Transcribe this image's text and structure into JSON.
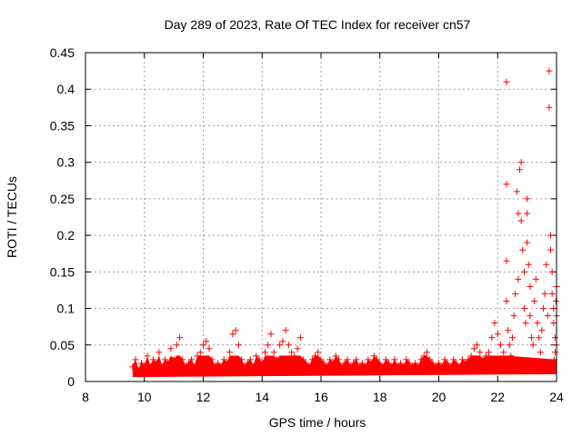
{
  "chart_data": {
    "type": "scatter",
    "title": "Day 289 of 2023, Rate Of TEC Index for receiver cn57",
    "xlabel": "GPS time / hours",
    "ylabel": "ROTI / TECUs",
    "xlim": [
      8,
      24
    ],
    "ylim": [
      0,
      0.45
    ],
    "xticks": [
      8,
      10,
      12,
      14,
      16,
      18,
      20,
      22,
      24
    ],
    "yticks": [
      0,
      0.05,
      0.1,
      0.15,
      0.2,
      0.25,
      0.3,
      0.35,
      0.4,
      0.45
    ],
    "ytick_labels": [
      "0",
      "0.05",
      "0.1",
      "0.15",
      "0.2",
      "0.25",
      "0.3",
      "0.35",
      "0.4",
      "0.45"
    ],
    "grid": true,
    "marker": "+",
    "color": "#ff0000",
    "series": [
      {
        "name": "ROTI",
        "points": [
          [
            9.6,
            0.02
          ],
          [
            9.7,
            0.03
          ],
          [
            9.8,
            0.015
          ],
          [
            9.9,
            0.025
          ],
          [
            10.0,
            0.02
          ],
          [
            10.1,
            0.035
          ],
          [
            10.2,
            0.02
          ],
          [
            10.3,
            0.03
          ],
          [
            10.4,
            0.025
          ],
          [
            10.5,
            0.04
          ],
          [
            10.6,
            0.02
          ],
          [
            10.7,
            0.03
          ],
          [
            10.8,
            0.025
          ],
          [
            10.9,
            0.045
          ],
          [
            11.0,
            0.03
          ],
          [
            11.1,
            0.05
          ],
          [
            11.2,
            0.06
          ],
          [
            11.3,
            0.03
          ],
          [
            11.4,
            0.02
          ],
          [
            11.5,
            0.025
          ],
          [
            11.6,
            0.03
          ],
          [
            11.7,
            0.02
          ],
          [
            11.8,
            0.035
          ],
          [
            11.9,
            0.04
          ],
          [
            12.0,
            0.05
          ],
          [
            12.1,
            0.055
          ],
          [
            12.2,
            0.045
          ],
          [
            12.3,
            0.03
          ],
          [
            12.4,
            0.02
          ],
          [
            12.5,
            0.025
          ],
          [
            12.6,
            0.02
          ],
          [
            12.7,
            0.03
          ],
          [
            12.8,
            0.025
          ],
          [
            12.9,
            0.04
          ],
          [
            13.0,
            0.065
          ],
          [
            13.1,
            0.07
          ],
          [
            13.2,
            0.05
          ],
          [
            13.3,
            0.03
          ],
          [
            13.4,
            0.02
          ],
          [
            13.5,
            0.025
          ],
          [
            13.6,
            0.03
          ],
          [
            13.7,
            0.02
          ],
          [
            13.8,
            0.035
          ],
          [
            13.9,
            0.03
          ],
          [
            14.0,
            0.025
          ],
          [
            14.1,
            0.04
          ],
          [
            14.2,
            0.05
          ],
          [
            14.3,
            0.065
          ],
          [
            14.4,
            0.04
          ],
          [
            14.5,
            0.03
          ],
          [
            14.6,
            0.05
          ],
          [
            14.7,
            0.055
          ],
          [
            14.8,
            0.07
          ],
          [
            14.9,
            0.05
          ],
          [
            15.0,
            0.04
          ],
          [
            15.1,
            0.035
          ],
          [
            15.2,
            0.045
          ],
          [
            15.3,
            0.06
          ],
          [
            15.4,
            0.03
          ],
          [
            15.5,
            0.025
          ],
          [
            15.6,
            0.02
          ],
          [
            15.7,
            0.03
          ],
          [
            15.8,
            0.035
          ],
          [
            15.9,
            0.04
          ],
          [
            16.0,
            0.03
          ],
          [
            16.1,
            0.025
          ],
          [
            16.2,
            0.02
          ],
          [
            16.3,
            0.03
          ],
          [
            16.4,
            0.025
          ],
          [
            16.5,
            0.035
          ],
          [
            16.6,
            0.03
          ],
          [
            16.7,
            0.02
          ],
          [
            16.8,
            0.025
          ],
          [
            16.9,
            0.03
          ],
          [
            17.0,
            0.02
          ],
          [
            17.1,
            0.025
          ],
          [
            17.2,
            0.03
          ],
          [
            17.3,
            0.02
          ],
          [
            17.4,
            0.025
          ],
          [
            17.5,
            0.02
          ],
          [
            17.6,
            0.03
          ],
          [
            17.7,
            0.025
          ],
          [
            17.8,
            0.035
          ],
          [
            17.9,
            0.03
          ],
          [
            18.0,
            0.025
          ],
          [
            18.1,
            0.02
          ],
          [
            18.2,
            0.03
          ],
          [
            18.3,
            0.025
          ],
          [
            18.4,
            0.02
          ],
          [
            18.5,
            0.03
          ],
          [
            18.6,
            0.02
          ],
          [
            18.7,
            0.025
          ],
          [
            18.8,
            0.02
          ],
          [
            18.9,
            0.03
          ],
          [
            19.0,
            0.025
          ],
          [
            19.1,
            0.02
          ],
          [
            19.2,
            0.025
          ],
          [
            19.3,
            0.02
          ],
          [
            19.4,
            0.03
          ],
          [
            19.5,
            0.035
          ],
          [
            19.6,
            0.04
          ],
          [
            19.7,
            0.03
          ],
          [
            19.8,
            0.025
          ],
          [
            19.9,
            0.02
          ],
          [
            20.0,
            0.025
          ],
          [
            20.1,
            0.02
          ],
          [
            20.2,
            0.03
          ],
          [
            20.3,
            0.025
          ],
          [
            20.4,
            0.02
          ],
          [
            20.5,
            0.03
          ],
          [
            20.6,
            0.025
          ],
          [
            20.7,
            0.02
          ],
          [
            20.8,
            0.03
          ],
          [
            20.9,
            0.025
          ],
          [
            21.0,
            0.03
          ],
          [
            21.1,
            0.035
          ],
          [
            21.2,
            0.045
          ],
          [
            21.3,
            0.05
          ],
          [
            21.4,
            0.04
          ],
          [
            21.5,
            0.03
          ],
          [
            21.6,
            0.035
          ],
          [
            21.7,
            0.04
          ],
          [
            21.8,
            0.06
          ],
          [
            21.9,
            0.08
          ],
          [
            22.0,
            0.065
          ],
          [
            22.1,
            0.05
          ],
          [
            22.2,
            0.04
          ],
          [
            22.3,
            0.41
          ],
          [
            22.3,
            0.27
          ],
          [
            22.3,
            0.165
          ],
          [
            22.3,
            0.11
          ],
          [
            22.35,
            0.07
          ],
          [
            22.4,
            0.05
          ],
          [
            22.45,
            0.035
          ],
          [
            22.5,
            0.06
          ],
          [
            22.55,
            0.09
          ],
          [
            22.6,
            0.12
          ],
          [
            22.65,
            0.26
          ],
          [
            22.7,
            0.23
          ],
          [
            22.7,
            0.14
          ],
          [
            22.75,
            0.29
          ],
          [
            22.8,
            0.3
          ],
          [
            22.8,
            0.22
          ],
          [
            22.85,
            0.18
          ],
          [
            22.9,
            0.15
          ],
          [
            22.9,
            0.1
          ],
          [
            22.95,
            0.08
          ],
          [
            23.0,
            0.25
          ],
          [
            23.0,
            0.23
          ],
          [
            23.0,
            0.19
          ],
          [
            23.05,
            0.16
          ],
          [
            23.1,
            0.13
          ],
          [
            23.1,
            0.09
          ],
          [
            23.15,
            0.06
          ],
          [
            23.2,
            0.05
          ],
          [
            23.25,
            0.11
          ],
          [
            23.3,
            0.14
          ],
          [
            23.35,
            0.08
          ],
          [
            23.4,
            0.06
          ],
          [
            23.45,
            0.04
          ],
          [
            23.5,
            0.07
          ],
          [
            23.55,
            0.1
          ],
          [
            23.6,
            0.12
          ],
          [
            23.65,
            0.16
          ],
          [
            23.7,
            0.09
          ],
          [
            23.75,
            0.425
          ],
          [
            23.75,
            0.375
          ],
          [
            23.8,
            0.2
          ],
          [
            23.8,
            0.18
          ],
          [
            23.85,
            0.15
          ],
          [
            23.85,
            0.12
          ],
          [
            23.9,
            0.1
          ],
          [
            23.9,
            0.08
          ],
          [
            23.95,
            0.06
          ],
          [
            23.95,
            0.04
          ],
          [
            24.0,
            0.13
          ],
          [
            24.0,
            0.09
          ],
          [
            24.0,
            0.05
          ],
          [
            23.98,
            0.11
          ],
          [
            23.92,
            0.03
          ]
        ]
      }
    ]
  }
}
